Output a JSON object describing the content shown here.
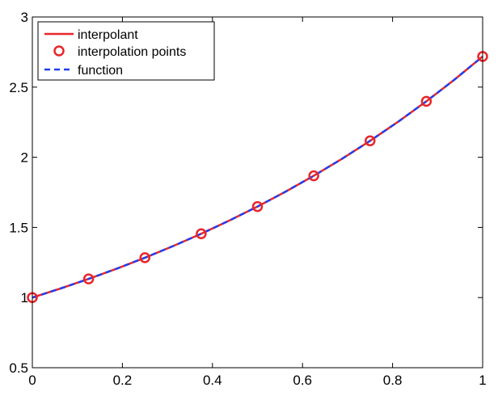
{
  "chart_data": {
    "type": "line",
    "title": "",
    "xlabel": "",
    "ylabel": "",
    "xlim": [
      0,
      1
    ],
    "ylim": [
      0.5,
      3
    ],
    "xticks": [
      0,
      0.2,
      0.4,
      0.6,
      0.8,
      1
    ],
    "xtick_labels": [
      "0",
      "0.2",
      "0.4",
      "0.6",
      "0.8",
      "1"
    ],
    "yticks": [
      0.5,
      1,
      1.5,
      2,
      2.5,
      3
    ],
    "ytick_labels": [
      "0.5",
      "1",
      "1.5",
      "2",
      "2.5",
      "3"
    ],
    "grid": false,
    "legend_position": "top-left",
    "series": [
      {
        "name": "interpolant",
        "style": "solid-line",
        "color": "#e8262a",
        "x": [
          0,
          0.0625,
          0.125,
          0.1875,
          0.25,
          0.3125,
          0.375,
          0.4375,
          0.5,
          0.5625,
          0.625,
          0.6875,
          0.75,
          0.8125,
          0.875,
          0.9375,
          1
        ],
        "y": [
          1.0,
          1.0645,
          1.1331,
          1.2062,
          1.284,
          1.3668,
          1.455,
          1.5488,
          1.6487,
          1.7551,
          1.8682,
          1.9887,
          2.117,
          2.2535,
          2.3989,
          2.5536,
          2.7183
        ]
      },
      {
        "name": "interpolation points",
        "style": "circle-markers",
        "color": "#e8262a",
        "x": [
          0,
          0.125,
          0.25,
          0.375,
          0.5,
          0.625,
          0.75,
          0.875,
          1
        ],
        "y": [
          1.0,
          1.1331,
          1.284,
          1.455,
          1.6487,
          1.8682,
          2.117,
          2.3989,
          2.7183
        ]
      },
      {
        "name": "function",
        "style": "dashed-line",
        "color": "#1f3ff0",
        "x": [
          0,
          0.0625,
          0.125,
          0.1875,
          0.25,
          0.3125,
          0.375,
          0.4375,
          0.5,
          0.5625,
          0.625,
          0.6875,
          0.75,
          0.8125,
          0.875,
          0.9375,
          1
        ],
        "y": [
          1.0,
          1.0645,
          1.1331,
          1.2062,
          1.284,
          1.3668,
          1.455,
          1.5488,
          1.6487,
          1.7551,
          1.8682,
          1.9887,
          2.117,
          2.2535,
          2.3989,
          2.5536,
          2.7183
        ]
      }
    ]
  }
}
